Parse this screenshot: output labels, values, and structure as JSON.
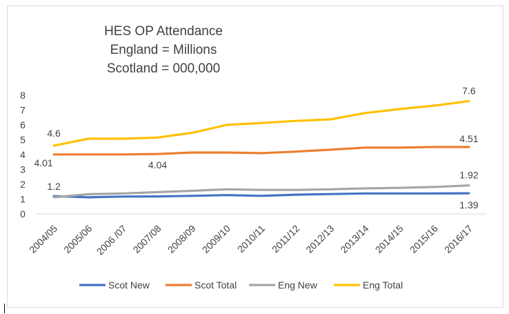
{
  "chart_data": {
    "type": "line",
    "title_lines": [
      "HES OP Attendance",
      "England = Millions",
      "Scotland = 000,000"
    ],
    "categories": [
      "2004/05",
      "2005/06",
      "2006 /07",
      "2007/08",
      "2008/09",
      "2009/10",
      "2010/11",
      "2011/12",
      "2012/13",
      "2013/14",
      "2014/15",
      "2015/16",
      "2016/17"
    ],
    "ylim": [
      0,
      8
    ],
    "yticks": [
      "0",
      "1",
      "2",
      "3",
      "4",
      "5",
      "6",
      "7",
      "8"
    ],
    "grid": false,
    "legend_position": "bottom",
    "series": [
      {
        "name": "Scot New",
        "color": "#4472C4",
        "values": [
          1.2,
          1.12,
          1.17,
          1.18,
          1.22,
          1.27,
          1.22,
          1.3,
          1.34,
          1.38,
          1.38,
          1.38,
          1.39
        ]
      },
      {
        "name": "Scot Total",
        "color": "#ED7D31",
        "values": [
          4.01,
          4.01,
          4.01,
          4.04,
          4.14,
          4.14,
          4.1,
          4.2,
          4.33,
          4.47,
          4.47,
          4.51,
          4.51
        ]
      },
      {
        "name": "Eng New",
        "color": "#A5A5A5",
        "values": [
          1.12,
          1.33,
          1.38,
          1.47,
          1.56,
          1.66,
          1.62,
          1.62,
          1.66,
          1.72,
          1.76,
          1.82,
          1.92
        ]
      },
      {
        "name": "Eng Total",
        "color": "#FFC000",
        "values": [
          4.6,
          5.07,
          5.07,
          5.15,
          5.47,
          6.0,
          6.13,
          6.27,
          6.37,
          6.8,
          7.07,
          7.3,
          7.6
        ]
      }
    ],
    "data_labels": [
      {
        "series": "Eng Total",
        "index": 0,
        "text": "4.6"
      },
      {
        "series": "Scot Total",
        "index": 0,
        "text": "4.01"
      },
      {
        "series": "Scot New",
        "index": 0,
        "text": "1.2"
      },
      {
        "series": "Scot Total",
        "index": 3,
        "text": "4.04"
      },
      {
        "series": "Eng Total",
        "index": 12,
        "text": "7.6"
      },
      {
        "series": "Scot Total",
        "index": 12,
        "text": "4.51"
      },
      {
        "series": "Eng New",
        "index": 12,
        "text": "1.92"
      },
      {
        "series": "Scot New",
        "index": 12,
        "text": "1.39"
      }
    ]
  }
}
